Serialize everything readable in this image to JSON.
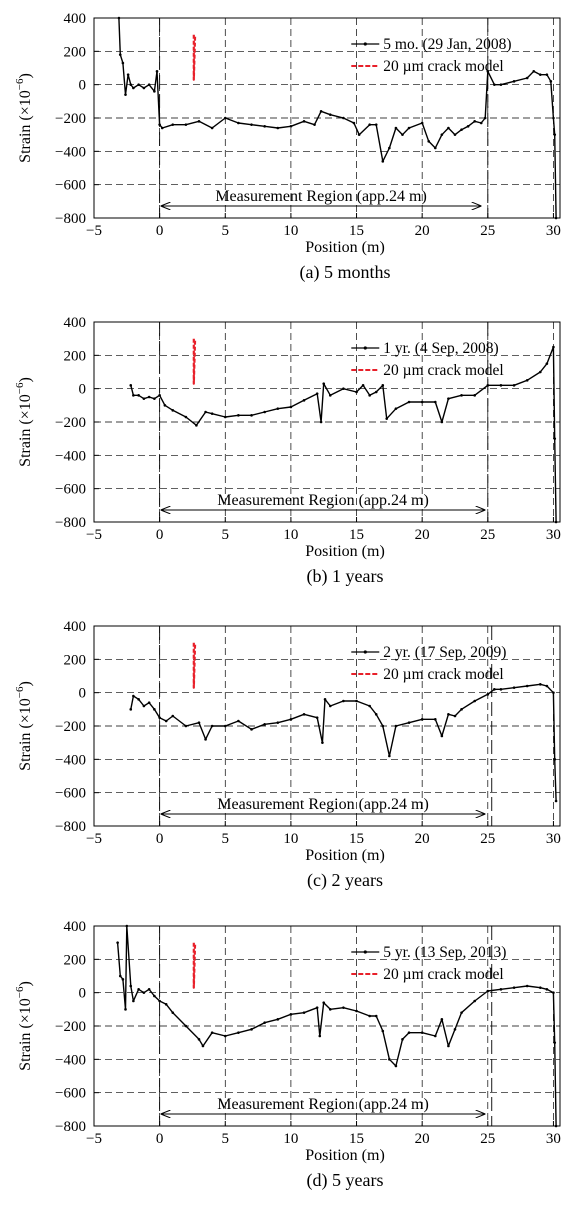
{
  "figure": {
    "x_tick_labels": [
      "−5",
      "0",
      "5",
      "10",
      "15",
      "20",
      "25",
      "30"
    ],
    "y_tick_labels": [
      "400",
      "200",
      "0",
      "−200",
      "−400",
      "−600",
      "−800"
    ],
    "superscript": "−6"
  },
  "chart_data": [
    {
      "type": "line",
      "caption": "(a) 5 months",
      "xlabel": "Position (m)",
      "ylabel": "Strain (×10",
      "xlim": [
        -5,
        30.5
      ],
      "ylim": [
        -800,
        400
      ],
      "grid": true,
      "legend_position": "top-right",
      "annotation": "Measurement Region (app.24 m)",
      "measurement_region": [
        0,
        24.6
      ],
      "boundaries": [
        0,
        25
      ],
      "series": [
        {
          "name": "5 mo. (29 Jan, 2008)",
          "color": "#000000",
          "x": [
            -3.1,
            -3.0,
            -2.8,
            -2.6,
            -2.4,
            -2.2,
            -2.0,
            -1.6,
            -1.2,
            -0.8,
            -0.4,
            -0.2,
            0.0,
            0.2,
            1.0,
            2.0,
            3.0,
            4.0,
            5.0,
            6.0,
            7.0,
            8.0,
            9.0,
            10.0,
            11.0,
            11.8,
            12.3,
            13.0,
            14.0,
            14.8,
            15.2,
            16.0,
            16.5,
            17.0,
            17.5,
            18.0,
            18.5,
            19.0,
            20.0,
            20.5,
            21.0,
            21.5,
            22.0,
            22.5,
            23.0,
            23.5,
            24.0,
            24.5,
            24.8,
            25.0,
            25.5,
            26.0,
            27.0,
            28.0,
            28.5,
            29.0,
            29.5,
            29.8,
            30.0,
            30.1,
            30.2
          ],
          "y": [
            400,
            180,
            130,
            -60,
            60,
            0,
            -20,
            0,
            -20,
            0,
            -40,
            80,
            -240,
            -260,
            -240,
            -240,
            -220,
            -260,
            -200,
            -230,
            -240,
            -250,
            -260,
            -250,
            -220,
            -240,
            -160,
            -180,
            -200,
            -230,
            -300,
            -240,
            -240,
            -460,
            -380,
            -260,
            -300,
            -260,
            -230,
            -340,
            -380,
            -300,
            -260,
            -300,
            -270,
            -250,
            -220,
            -230,
            -200,
            80,
            0,
            0,
            20,
            40,
            80,
            60,
            60,
            20,
            -200,
            -300,
            -800
          ]
        },
        {
          "name": "20 µm crack model",
          "color": "#e8202a",
          "x": [
            2.6,
            2.6,
            2.7
          ],
          "y": [
            300,
            30,
            300
          ]
        }
      ]
    },
    {
      "type": "line",
      "caption": "(b) 1 years",
      "xlabel": "Position (m)",
      "ylabel": "Strain (×10",
      "xlim": [
        -5,
        30.5
      ],
      "ylim": [
        -800,
        400
      ],
      "grid": true,
      "legend_position": "top-right",
      "annotation": "Measurement Region (app.24 m)",
      "measurement_region": [
        0,
        24.9
      ],
      "boundaries": [
        0,
        25
      ],
      "series": [
        {
          "name": "1 yr. (4 Sep, 2008)",
          "color": "#000000",
          "x": [
            -2.2,
            -2.0,
            -1.6,
            -1.2,
            -0.8,
            -0.4,
            0.0,
            0.4,
            1.0,
            2.0,
            2.8,
            3.5,
            4.0,
            5.0,
            6.0,
            7.0,
            8.0,
            9.0,
            10.0,
            11.0,
            12.0,
            12.3,
            12.5,
            13.0,
            14.0,
            15.0,
            15.5,
            16.0,
            16.5,
            17.0,
            17.3,
            18.0,
            19.0,
            20.0,
            21.0,
            21.5,
            22.0,
            23.0,
            24.0,
            25.0,
            26.0,
            27.0,
            28.0,
            29.0,
            29.5,
            30.0,
            30.1,
            30.2
          ],
          "y": [
            20,
            -40,
            -40,
            -60,
            -50,
            -60,
            -40,
            -100,
            -130,
            -170,
            -220,
            -140,
            -150,
            -170,
            -160,
            -160,
            -140,
            -120,
            -110,
            -70,
            -30,
            -200,
            30,
            -40,
            0,
            -20,
            20,
            -40,
            -20,
            20,
            -180,
            -120,
            -80,
            -80,
            -80,
            -200,
            -60,
            -40,
            -40,
            20,
            20,
            20,
            50,
            100,
            150,
            250,
            -300,
            -800
          ]
        },
        {
          "name": "20 µm crack model",
          "color": "#e8202a",
          "x": [
            2.6,
            2.6,
            2.7
          ],
          "y": [
            300,
            30,
            300
          ]
        }
      ]
    },
    {
      "type": "line",
      "caption": "(c) 2 years",
      "xlabel": "Position (m)",
      "ylabel": "Strain (×10",
      "xlim": [
        -5,
        30.5
      ],
      "ylim": [
        -800,
        400
      ],
      "grid": true,
      "legend_position": "top-right",
      "annotation": "Measurement Region (app.24 m)",
      "measurement_region": [
        0,
        24.9
      ],
      "boundaries": [
        0,
        25.3
      ],
      "series": [
        {
          "name": "2 yr. (17 Sep, 2009)",
          "color": "#000000",
          "x": [
            -2.2,
            -2.0,
            -1.6,
            -1.2,
            -0.8,
            -0.4,
            0.0,
            0.5,
            1.0,
            2.0,
            3.0,
            3.5,
            4.0,
            5.0,
            6.0,
            7.0,
            8.0,
            9.0,
            10.0,
            11.0,
            12.0,
            12.4,
            12.6,
            13.0,
            14.0,
            15.0,
            16.0,
            16.5,
            17.0,
            17.5,
            18.0,
            19.0,
            20.0,
            21.0,
            21.5,
            22.0,
            22.5,
            23.0,
            24.0,
            25.0,
            25.5,
            26.0,
            27.0,
            28.0,
            29.0,
            29.5,
            30.0,
            30.1,
            30.2
          ],
          "y": [
            -100,
            -20,
            -40,
            -80,
            -60,
            -100,
            -150,
            -170,
            -140,
            -200,
            -180,
            -280,
            -200,
            -200,
            -170,
            -220,
            -190,
            -180,
            -160,
            -130,
            -150,
            -300,
            -40,
            -80,
            -50,
            -50,
            -80,
            -130,
            -200,
            -380,
            -200,
            -180,
            -160,
            -160,
            -260,
            -130,
            -140,
            -100,
            -50,
            -10,
            20,
            20,
            30,
            40,
            50,
            40,
            0,
            -400,
            -650
          ]
        },
        {
          "name": "20 µm crack model",
          "color": "#e8202a",
          "x": [
            2.6,
            2.6,
            2.7
          ],
          "y": [
            300,
            30,
            300
          ]
        }
      ]
    },
    {
      "type": "line",
      "caption": "(d) 5 years",
      "xlabel": "Position (m)",
      "ylabel": "Strain (×10",
      "xlim": [
        -5,
        30.5
      ],
      "ylim": [
        -800,
        400
      ],
      "grid": true,
      "legend_position": "top-right",
      "annotation": "Measurement Region (app.24 m)",
      "measurement_region": [
        0,
        24.9
      ],
      "boundaries": [
        0,
        25.3
      ],
      "series": [
        {
          "name": "5 yr. (13 Sep, 2013)",
          "color": "#000000",
          "x": [
            -3.2,
            -3.0,
            -2.8,
            -2.6,
            -2.5,
            -2.2,
            -2.0,
            -1.6,
            -1.2,
            -0.8,
            -0.4,
            0.0,
            0.5,
            1.0,
            2.0,
            3.0,
            3.3,
            4.0,
            5.0,
            6.0,
            7.0,
            8.0,
            9.0,
            10.0,
            11.0,
            12.0,
            12.2,
            12.5,
            13.0,
            14.0,
            15.0,
            16.0,
            16.5,
            17.0,
            17.5,
            18.0,
            18.5,
            19.0,
            20.0,
            21.0,
            21.5,
            22.0,
            22.5,
            23.0,
            24.0,
            25.0,
            26.0,
            27.0,
            28.0,
            29.0,
            29.5,
            30.0,
            30.1,
            30.2
          ],
          "y": [
            300,
            100,
            80,
            -100,
            400,
            40,
            -50,
            20,
            0,
            20,
            -20,
            -50,
            -70,
            -120,
            -200,
            -280,
            -320,
            -240,
            -260,
            -240,
            -220,
            -180,
            -160,
            -130,
            -120,
            -90,
            -260,
            -60,
            -100,
            -90,
            -110,
            -140,
            -140,
            -230,
            -400,
            -440,
            -280,
            -240,
            -240,
            -260,
            -160,
            -320,
            -220,
            -120,
            -50,
            10,
            20,
            30,
            40,
            30,
            20,
            0,
            -300,
            -800
          ]
        },
        {
          "name": "20 µm crack model",
          "color": "#e8202a",
          "x": [
            2.6,
            2.6,
            2.7
          ],
          "y": [
            300,
            30,
            300
          ]
        }
      ]
    }
  ]
}
